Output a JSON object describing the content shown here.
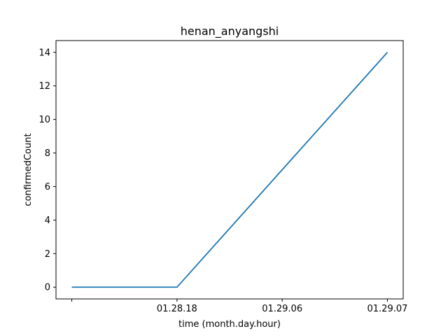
{
  "chart_data": {
    "type": "line",
    "title": "henan_anyangshi",
    "xlabel": "time (month.day.hour)",
    "ylabel": "confirmedCount",
    "categories": [
      "",
      "01.28.18",
      "01.29.06",
      "01.29.07"
    ],
    "series": [
      {
        "values": [
          0,
          0,
          7,
          14
        ],
        "color": "#1f77b4"
      }
    ],
    "ylim": [
      -0.7,
      14.7
    ],
    "yticks": [
      0,
      2,
      4,
      6,
      8,
      10,
      12,
      14
    ],
    "grid": false,
    "legend": "none"
  }
}
